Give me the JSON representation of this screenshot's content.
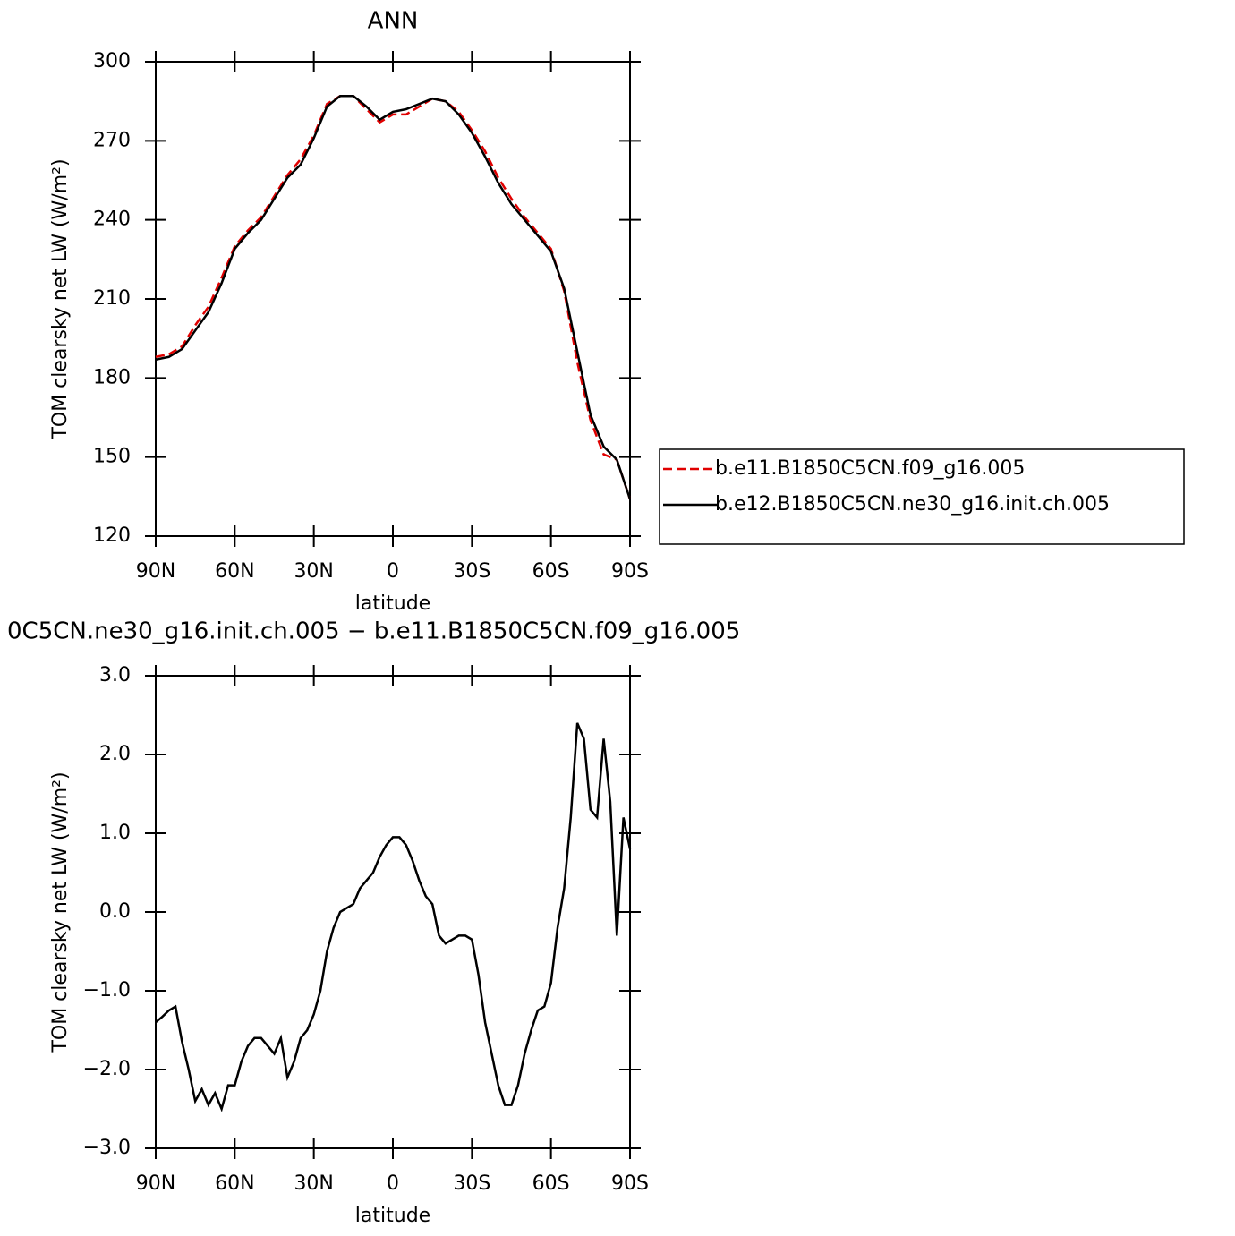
{
  "chart_data": [
    {
      "type": "line",
      "title": "ANN",
      "xlabel": "latitude",
      "ylabel": "TOM clearsky net LW (W/m²)",
      "x": [
        90,
        85,
        80,
        75,
        70,
        65,
        60,
        55,
        50,
        45,
        40,
        35,
        30,
        25,
        20,
        15,
        10,
        5,
        0,
        -5,
        -10,
        -15,
        -20,
        -25,
        -30,
        -35,
        -40,
        -45,
        -50,
        -55,
        -60,
        -65,
        -70,
        -75,
        -80,
        -85,
        -90
      ],
      "series": [
        {
          "name": "b.e11.B1850C5CN.f09_g16.005",
          "color": "#e00000",
          "style": "dashed",
          "values": [
            188,
            189,
            192,
            200,
            207,
            218,
            230,
            236,
            241,
            249,
            257,
            263,
            272,
            284,
            287,
            287,
            282,
            277,
            280,
            280,
            283,
            286,
            285,
            281,
            274,
            266,
            256,
            248,
            241,
            235,
            229,
            213,
            186,
            164,
            151,
            149,
            134
          ]
        },
        {
          "name": "b.e12.B1850C5CN.ne30_g16.init.ch.005",
          "color": "#000000",
          "style": "solid",
          "values": [
            187,
            188,
            191,
            198,
            205,
            216,
            229,
            235,
            240,
            248,
            256,
            261,
            271,
            283,
            287,
            287,
            283,
            278,
            281,
            282,
            284,
            286,
            285,
            280,
            273,
            264,
            254,
            246,
            240,
            234,
            228,
            214,
            190,
            166,
            154,
            149,
            134
          ]
        }
      ],
      "xlim": [
        90,
        -90
      ],
      "xticks": [
        {
          "value": 90,
          "label": "90N"
        },
        {
          "value": 60,
          "label": "60N"
        },
        {
          "value": 30,
          "label": "30N"
        },
        0,
        {
          "value": -30,
          "label": "30S"
        },
        {
          "value": -60,
          "label": "60S"
        },
        {
          "value": -90,
          "label": "90S"
        }
      ],
      "ylim": [
        120,
        300
      ],
      "yticks": [
        120,
        150,
        180,
        210,
        240,
        270,
        300
      ],
      "legend": "outside-right"
    },
    {
      "type": "line",
      "title": "0C5CN.ne30_g16.init.ch.005 − b.e11.B1850C5CN.f09_g16.005",
      "xlabel": "latitude",
      "ylabel": "TOM clearsky net LW (W/m²)",
      "x": [
        90,
        87.5,
        85,
        82.5,
        80,
        77.5,
        75,
        72.5,
        70,
        67.5,
        65,
        62.5,
        60,
        57.5,
        55,
        52.5,
        50,
        47.5,
        45,
        42.5,
        40,
        37.5,
        35,
        32.5,
        30,
        27.5,
        25,
        22.5,
        20,
        17.5,
        15,
        12.5,
        10,
        7.5,
        5,
        2.5,
        0,
        -2.5,
        -5,
        -7.5,
        -10,
        -12.5,
        -15,
        -17.5,
        -20,
        -22.5,
        -25,
        -27.5,
        -30,
        -32.5,
        -35,
        -37.5,
        -40,
        -42.5,
        -45,
        -47.5,
        -50,
        -52.5,
        -55,
        -57.5,
        -60,
        -62.5,
        -65,
        -67.5,
        -70,
        -72.5,
        -75,
        -77.5,
        -80,
        -82.5,
        -85,
        -87.5,
        -90
      ],
      "series": [
        {
          "name": null,
          "color": "#000000",
          "style": "solid",
          "values": [
            -1.4,
            -1.33,
            -1.25,
            -1.2,
            -1.65,
            -2.0,
            -2.4,
            -2.25,
            -2.45,
            -2.3,
            -2.5,
            -2.2,
            -2.2,
            -1.9,
            -1.7,
            -1.6,
            -1.6,
            -1.7,
            -1.8,
            -1.6,
            -2.1,
            -1.9,
            -1.6,
            -1.5,
            -1.3,
            -1.0,
            -0.5,
            -0.2,
            0.0,
            0.05,
            0.1,
            0.3,
            0.4,
            0.5,
            0.7,
            0.85,
            0.95,
            0.95,
            0.85,
            0.65,
            0.4,
            0.2,
            0.1,
            -0.3,
            -0.4,
            -0.35,
            -0.3,
            -0.3,
            -0.35,
            -0.8,
            -1.4,
            -1.8,
            -2.2,
            -2.45,
            -2.45,
            -2.2,
            -1.8,
            -1.5,
            -1.25,
            -1.2,
            -0.9,
            -0.2,
            0.3,
            1.2,
            2.4,
            2.2,
            1.3,
            1.2,
            2.2,
            1.4,
            -0.3,
            1.2,
            0.8
          ]
        }
      ],
      "xlim": [
        90,
        -90
      ],
      "xticks": [
        {
          "value": 90,
          "label": "90N"
        },
        {
          "value": 60,
          "label": "60N"
        },
        {
          "value": 30,
          "label": "30N"
        },
        0,
        {
          "value": -30,
          "label": "30S"
        },
        {
          "value": -60,
          "label": "60S"
        },
        {
          "value": -90,
          "label": "90S"
        }
      ],
      "ylim": [
        -3,
        3
      ],
      "yticks": [
        {
          "value": -3,
          "label": "−3.0"
        },
        {
          "value": -2,
          "label": "−2.0"
        },
        {
          "value": -1,
          "label": "−1.0"
        },
        {
          "value": 0,
          "label": "0.0"
        },
        {
          "value": 1,
          "label": "1.0"
        },
        {
          "value": 2,
          "label": "2.0"
        },
        {
          "value": 3,
          "label": "3.0"
        }
      ]
    }
  ]
}
